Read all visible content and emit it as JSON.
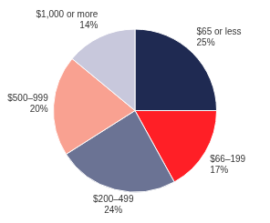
{
  "chart_data": {
    "type": "pie",
    "categories": [
      "$65 or less",
      "$66–199",
      "$200–499",
      "$500–999",
      "$1,000 or more"
    ],
    "values": [
      25,
      17,
      24,
      20,
      14
    ],
    "value_labels": [
      "25%",
      "17%",
      "24%",
      "20%",
      "14%"
    ],
    "colors": [
      "#1f2a52",
      "#ff1f26",
      "#6b7394",
      "#f9a191",
      "#c8c8dc"
    ],
    "data_labels": true
  }
}
